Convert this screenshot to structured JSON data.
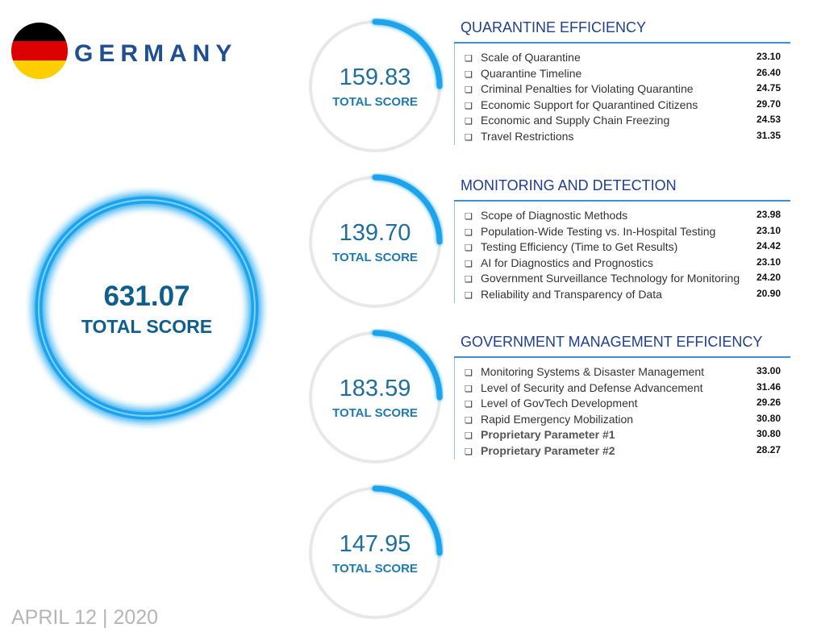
{
  "country": {
    "name": "GERMANY",
    "flag_colors": [
      "#000000",
      "#dd0000",
      "#ffce00"
    ]
  },
  "total": {
    "value": "631.07",
    "label": "TOTAL SCORE"
  },
  "colors": {
    "accent": "#1aa3ec",
    "ring_track": "#e8e8e8",
    "value_text": "#1f6e9c",
    "heading": "#1f3f8f"
  },
  "rings": [
    {
      "value": "159.83",
      "label": "TOTAL SCORE"
    },
    {
      "value": "139.70",
      "label": "TOTAL SCORE"
    },
    {
      "value": "183.59",
      "label": "TOTAL SCORE"
    },
    {
      "value": "147.95",
      "label": "TOTAL SCORE"
    }
  ],
  "sections": [
    {
      "title": "QUARANTINE EFFICIENCY",
      "items": [
        {
          "label": "Scale of Quarantine",
          "value": "23.10"
        },
        {
          "label": "Quarantine Timeline",
          "value": "26.40"
        },
        {
          "label": "Criminal Penalties for Violating Quarantine",
          "value": "24.75"
        },
        {
          "label": "Economic Support for Quarantined Citizens",
          "value": "29.70"
        },
        {
          "label": "Economic and Supply Chain Freezing",
          "value": "24.53"
        },
        {
          "label": "Travel Restrictions",
          "value": "31.35"
        }
      ]
    },
    {
      "title": "MONITORING AND DETECTION",
      "items": [
        {
          "label": "Scope of Diagnostic Methods",
          "value": "23.98"
        },
        {
          "label": "Population-Wide Testing vs. In-Hospital Testing",
          "value": "23.10"
        },
        {
          "label": "Testing Efficiency (Time to Get Results)",
          "value": "24.42"
        },
        {
          "label": "AI for Diagnostics and Prognostics",
          "value": "23.10"
        },
        {
          "label": "Government Surveillance Technology for Monitoring",
          "value": "24.20"
        },
        {
          "label": "Reliability and Transparency of Data",
          "value": "20.90"
        }
      ]
    },
    {
      "title": "GOVERNMENT MANAGEMENT EFFICIENCY",
      "items": [
        {
          "label": "Monitoring Systems & Disaster Management",
          "value": "33.00"
        },
        {
          "label": "Level of Security and Defense Advancement",
          "value": "31.46"
        },
        {
          "label": "Level of GovTech Development",
          "value": "29.26"
        },
        {
          "label": "Rapid Emergency Mobilization",
          "value": "30.80"
        },
        {
          "label": "Proprietary Parameter #1",
          "value": "30.80"
        },
        {
          "label": "Proprietary Parameter #2",
          "value": "28.27"
        }
      ]
    }
  ],
  "checkbox_glyph": "❏",
  "date": "APRIL 12 | 2020"
}
